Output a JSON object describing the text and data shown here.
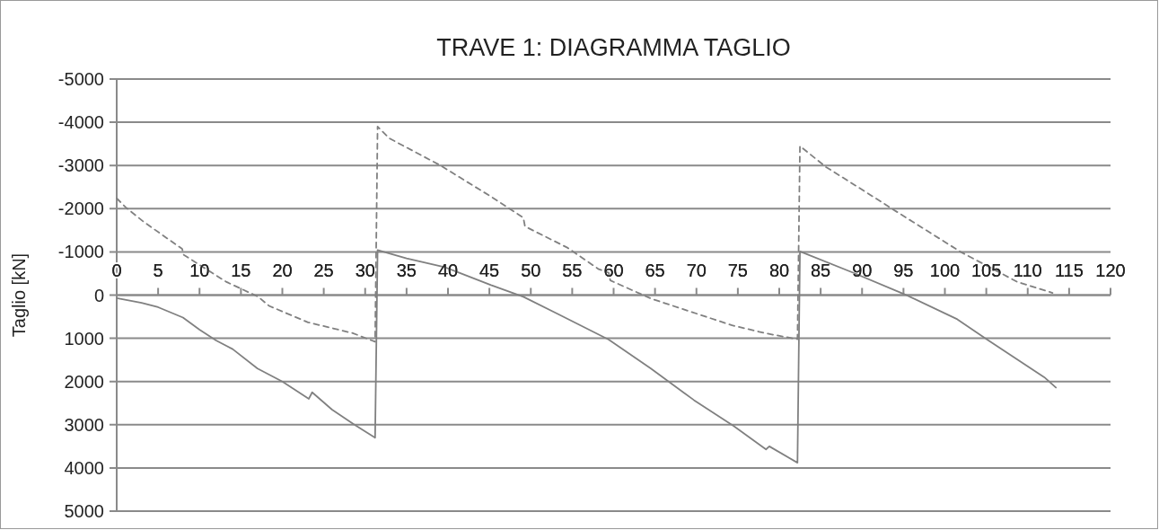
{
  "chart_data": {
    "type": "line",
    "title": "TRAVE 1: DIAGRAMMA TAGLIO",
    "ylabel": "Taglio [kN]",
    "xlim": [
      0,
      120
    ],
    "xticks": [
      0,
      5,
      10,
      15,
      20,
      25,
      30,
      35,
      40,
      45,
      50,
      55,
      60,
      65,
      70,
      75,
      80,
      85,
      90,
      95,
      100,
      105,
      110,
      115,
      120
    ],
    "ylim": [
      5000,
      -5000
    ],
    "yticks": [
      -5000,
      -4000,
      -3000,
      -2000,
      -1000,
      0,
      1000,
      2000,
      3000,
      4000,
      5000
    ],
    "grid": "y",
    "series": [
      {
        "color": "#808080",
        "line_style": "solid",
        "x": [
          0,
          3,
          5,
          8,
          10,
          12,
          14,
          17,
          20,
          23.2,
          23.6,
          26,
          28.7,
          31.2,
          31.5,
          35,
          39.7,
          45.2,
          49.1,
          53.1,
          59.4,
          64.5,
          69.7,
          74.5,
          78.4,
          78.8,
          82.2,
          82.5,
          88.9,
          95,
          101.5,
          105.1,
          112,
          113.4
        ],
        "values": [
          70,
          180,
          280,
          520,
          800,
          1050,
          1250,
          1700,
          2000,
          2400,
          2250,
          2650,
          3000,
          3300,
          -1040,
          -850,
          -640,
          -230,
          40,
          420,
          1030,
          1700,
          2430,
          3030,
          3570,
          3500,
          3880,
          -1010,
          -520,
          -30,
          560,
          1030,
          1900,
          2140
        ]
      },
      {
        "color": "#808080",
        "line_style": "dashed",
        "x": [
          0,
          1.1,
          3.3,
          7.9,
          8.1,
          13.2,
          17.1,
          18.4,
          23.1,
          28.5,
          31.2,
          31.5,
          32.9,
          39,
          45.2,
          49.1,
          49.3,
          54.4,
          58.2,
          59.4,
          59.6,
          64.5,
          74.3,
          78.5,
          82.2,
          82.5,
          85.6,
          90.5,
          93.6,
          101.9,
          108.7,
          113
        ],
        "values": [
          -2240,
          -2030,
          -1690,
          -1070,
          -930,
          -310,
          40,
          250,
          630,
          880,
          1080,
          -3900,
          -3630,
          -3010,
          -2280,
          -1790,
          -1590,
          -1100,
          -600,
          -520,
          -340,
          80,
          700,
          890,
          1020,
          -3450,
          -2970,
          -2380,
          -2000,
          -1000,
          -310,
          -50
        ]
      }
    ]
  }
}
